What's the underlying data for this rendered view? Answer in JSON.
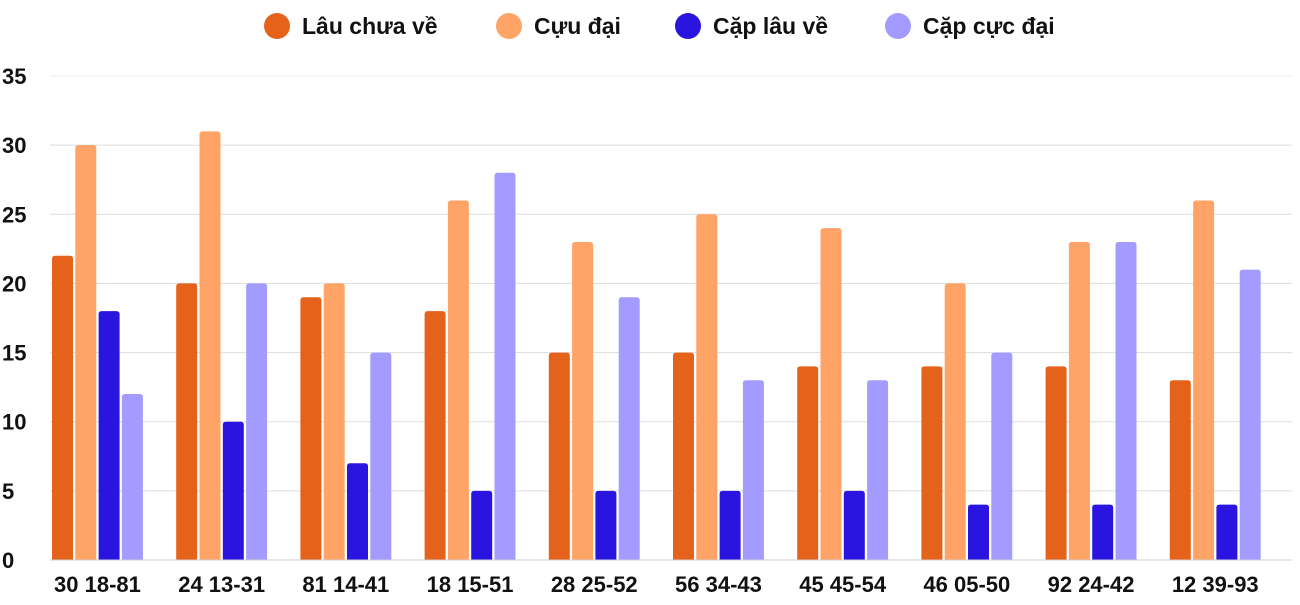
{
  "chart_data": {
    "type": "bar",
    "title": "",
    "xlabel": "",
    "ylabel": "",
    "ylim": [
      0,
      35
    ],
    "yticks": [
      0,
      5,
      10,
      15,
      20,
      25,
      30,
      35
    ],
    "grid": true,
    "legend_position": "top",
    "categories": [
      "30 18-81",
      "24 13-31",
      "81 14-41",
      "18 15-51",
      "28 25-52",
      "56 34-43",
      "45 45-54",
      "46 05-50",
      "92 24-42",
      "12 39-93"
    ],
    "series": [
      {
        "name": "Lâu chưa về",
        "color": "#E5621A",
        "values": [
          22,
          20,
          19,
          18,
          15,
          15,
          14,
          14,
          14,
          13
        ]
      },
      {
        "name": "Cựu đại",
        "color": "#FFA366",
        "values": [
          30,
          31,
          20,
          26,
          23,
          25,
          24,
          20,
          23,
          26
        ]
      },
      {
        "name": "Cặp lâu về",
        "color": "#2A14E0",
        "values": [
          18,
          10,
          7,
          5,
          5,
          5,
          5,
          4,
          4,
          4
        ]
      },
      {
        "name": "Cặp cực đại",
        "color": "#A39BFF",
        "values": [
          12,
          20,
          15,
          28,
          19,
          13,
          13,
          15,
          23,
          21
        ]
      }
    ]
  }
}
